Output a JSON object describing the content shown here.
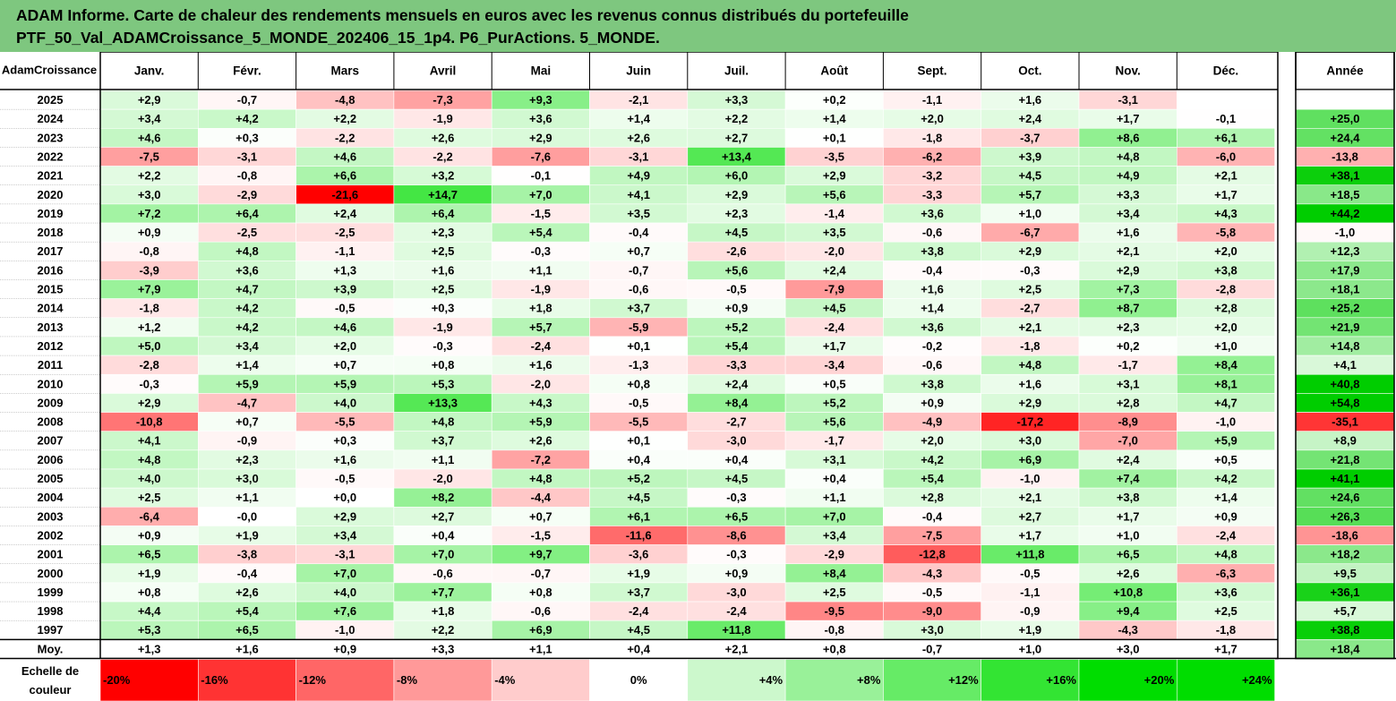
{
  "header": {
    "line1": "ADAM Informe. Carte de chaleur des rendements mensuels en euros avec les revenus connus distribués du portefeuille",
    "line2": "PTF_50_Val_ADAMCroissance_5_MONDE_202406_15_1p4. P6_PurActions. 5_MONDE."
  },
  "corner_watermark": "AdamCroissance",
  "chart_data": {
    "type": "heatmap",
    "title": "ADAM Informe. Carte de chaleur des rendements mensuels en euros avec les revenus connus distribués du portefeuille PTF_50_Val_ADAMCroissance_5_MONDE_202406_15_1p4. P6_PurActions. 5_MONDE.",
    "columns": [
      "Janv.",
      "Févr.",
      "Mars",
      "Avril",
      "Mai",
      "Juin",
      "Juil.",
      "Août",
      "Sept.",
      "Oct.",
      "Nov.",
      "Déc."
    ],
    "year_column": "Année",
    "rows": [
      {
        "year": "2025",
        "values": [
          "+2,9",
          "-0,7",
          "-4,8",
          "-7,3",
          "+9,3",
          "-2,1",
          "+3,3",
          "+0,2",
          "-1,1",
          "+1,6",
          "-3,1",
          ""
        ],
        "annual": ""
      },
      {
        "year": "2024",
        "values": [
          "+3,4",
          "+4,2",
          "+2,2",
          "-1,9",
          "+3,6",
          "+1,4",
          "+2,2",
          "+1,4",
          "+2,0",
          "+2,4",
          "+1,7",
          "-0,1"
        ],
        "annual": "+25,0"
      },
      {
        "year": "2023",
        "values": [
          "+4,6",
          "+0,3",
          "-2,2",
          "+2,6",
          "+2,9",
          "+2,6",
          "+2,7",
          "+0,1",
          "-1,8",
          "-3,7",
          "+8,6",
          "+6,1"
        ],
        "annual": "+24,4"
      },
      {
        "year": "2022",
        "values": [
          "-7,5",
          "-3,1",
          "+4,6",
          "-2,2",
          "-7,6",
          "-3,1",
          "+13,4",
          "-3,5",
          "-6,2",
          "+3,9",
          "+4,8",
          "-6,0"
        ],
        "annual": "-13,8"
      },
      {
        "year": "2021",
        "values": [
          "+2,2",
          "-0,8",
          "+6,6",
          "+3,2",
          "-0,1",
          "+4,9",
          "+6,0",
          "+2,9",
          "-3,2",
          "+4,5",
          "+4,9",
          "+2,1"
        ],
        "annual": "+38,1"
      },
      {
        "year": "2020",
        "values": [
          "+3,0",
          "-2,9",
          "-21,6",
          "+14,7",
          "+7,0",
          "+4,1",
          "+2,9",
          "+5,6",
          "-3,3",
          "+5,7",
          "+3,3",
          "+1,7"
        ],
        "annual": "+18,5"
      },
      {
        "year": "2019",
        "values": [
          "+7,2",
          "+6,4",
          "+2,4",
          "+6,4",
          "-1,5",
          "+3,5",
          "+2,3",
          "-1,4",
          "+3,6",
          "+1,0",
          "+3,4",
          "+4,3"
        ],
        "annual": "+44,2"
      },
      {
        "year": "2018",
        "values": [
          "+0,9",
          "-2,5",
          "-2,5",
          "+2,3",
          "+5,4",
          "-0,4",
          "+4,5",
          "+3,5",
          "-0,6",
          "-6,7",
          "+1,6",
          "-5,8"
        ],
        "annual": "-1,0"
      },
      {
        "year": "2017",
        "values": [
          "-0,8",
          "+4,8",
          "-1,1",
          "+2,5",
          "-0,3",
          "+0,7",
          "-2,6",
          "-2,0",
          "+3,8",
          "+2,9",
          "+2,1",
          "+2,0"
        ],
        "annual": "+12,3"
      },
      {
        "year": "2016",
        "values": [
          "-3,9",
          "+3,6",
          "+1,3",
          "+1,6",
          "+1,1",
          "-0,7",
          "+5,6",
          "+2,4",
          "-0,4",
          "-0,3",
          "+2,9",
          "+3,8"
        ],
        "annual": "+17,9"
      },
      {
        "year": "2015",
        "values": [
          "+7,9",
          "+4,7",
          "+3,9",
          "+2,5",
          "-1,9",
          "-0,6",
          "-0,5",
          "-7,9",
          "+1,6",
          "+2,5",
          "+7,3",
          "-2,8"
        ],
        "annual": "+18,1"
      },
      {
        "year": "2014",
        "values": [
          "-1,8",
          "+4,2",
          "-0,5",
          "+0,3",
          "+1,8",
          "+3,7",
          "+0,9",
          "+4,5",
          "+1,4",
          "-2,7",
          "+8,7",
          "+2,8"
        ],
        "annual": "+25,2"
      },
      {
        "year": "2013",
        "values": [
          "+1,2",
          "+4,2",
          "+4,6",
          "-1,9",
          "+5,7",
          "-5,9",
          "+5,2",
          "-2,4",
          "+3,6",
          "+2,1",
          "+2,3",
          "+2,0"
        ],
        "annual": "+21,9"
      },
      {
        "year": "2012",
        "values": [
          "+5,0",
          "+3,4",
          "+2,0",
          "-0,3",
          "-2,4",
          "+0,1",
          "+5,4",
          "+1,7",
          "-0,2",
          "-1,8",
          "+0,2",
          "+1,0"
        ],
        "annual": "+14,8"
      },
      {
        "year": "2011",
        "values": [
          "-2,8",
          "+1,4",
          "+0,7",
          "+0,8",
          "+1,6",
          "-1,3",
          "-3,3",
          "-3,4",
          "-0,6",
          "+4,8",
          "-1,7",
          "+8,4"
        ],
        "annual": "+4,1"
      },
      {
        "year": "2010",
        "values": [
          "-0,3",
          "+5,9",
          "+5,9",
          "+5,3",
          "-2,0",
          "+0,8",
          "+2,4",
          "+0,5",
          "+3,8",
          "+1,6",
          "+3,1",
          "+8,1"
        ],
        "annual": "+40,8"
      },
      {
        "year": "2009",
        "values": [
          "+2,9",
          "-4,7",
          "+4,0",
          "+13,3",
          "+4,3",
          "-0,5",
          "+8,4",
          "+5,2",
          "+0,9",
          "+2,9",
          "+2,8",
          "+4,7"
        ],
        "annual": "+54,8"
      },
      {
        "year": "2008",
        "values": [
          "-10,8",
          "+0,7",
          "-5,5",
          "+4,8",
          "+5,9",
          "-5,5",
          "-2,7",
          "+5,6",
          "-4,9",
          "-17,2",
          "-8,9",
          "-1,0"
        ],
        "annual": "-35,1"
      },
      {
        "year": "2007",
        "values": [
          "+4,1",
          "-0,9",
          "+0,3",
          "+3,7",
          "+2,6",
          "+0,1",
          "-3,0",
          "-1,7",
          "+2,0",
          "+3,0",
          "-7,0",
          "+5,9"
        ],
        "annual": "+8,9"
      },
      {
        "year": "2006",
        "values": [
          "+4,8",
          "+2,3",
          "+1,6",
          "+1,1",
          "-7,2",
          "+0,4",
          "+0,4",
          "+3,1",
          "+4,2",
          "+6,9",
          "+2,4",
          "+0,5"
        ],
        "annual": "+21,8"
      },
      {
        "year": "2005",
        "values": [
          "+4,0",
          "+3,0",
          "-0,5",
          "-2,0",
          "+4,8",
          "+5,2",
          "+4,5",
          "+0,4",
          "+5,4",
          "-1,0",
          "+7,4",
          "+4,2"
        ],
        "annual": "+41,1"
      },
      {
        "year": "2004",
        "values": [
          "+2,5",
          "+1,1",
          "+0,0",
          "+8,2",
          "-4,4",
          "+4,5",
          "-0,3",
          "+1,1",
          "+2,8",
          "+2,1",
          "+3,8",
          "+1,4"
        ],
        "annual": "+24,6"
      },
      {
        "year": "2003",
        "values": [
          "-6,4",
          "-0,0",
          "+2,9",
          "+2,7",
          "+0,7",
          "+6,1",
          "+6,5",
          "+7,0",
          "-0,4",
          "+2,7",
          "+1,7",
          "+0,9"
        ],
        "annual": "+26,3"
      },
      {
        "year": "2002",
        "values": [
          "+0,9",
          "+1,9",
          "+3,4",
          "+0,4",
          "-1,5",
          "-11,6",
          "-8,6",
          "+3,4",
          "-7,5",
          "+1,7",
          "+1,0",
          "-2,4"
        ],
        "annual": "-18,6"
      },
      {
        "year": "2001",
        "values": [
          "+6,5",
          "-3,8",
          "-3,1",
          "+7,0",
          "+9,7",
          "-3,6",
          "-0,3",
          "-2,9",
          "-12,8",
          "+11,8",
          "+6,5",
          "+4,8"
        ],
        "annual": "+18,2"
      },
      {
        "year": "2000",
        "values": [
          "+1,9",
          "-0,4",
          "+7,0",
          "-0,6",
          "-0,7",
          "+1,9",
          "+0,9",
          "+8,4",
          "-4,3",
          "-0,5",
          "+2,6",
          "-6,3"
        ],
        "annual": "+9,5"
      },
      {
        "year": "1999",
        "values": [
          "+0,8",
          "+2,6",
          "+4,0",
          "+7,7",
          "+0,8",
          "+3,7",
          "-3,0",
          "+2,5",
          "-0,5",
          "-1,1",
          "+10,8",
          "+3,6"
        ],
        "annual": "+36,1"
      },
      {
        "year": "1998",
        "values": [
          "+4,4",
          "+5,4",
          "+7,6",
          "+1,8",
          "-0,6",
          "-2,4",
          "-2,4",
          "-9,5",
          "-9,0",
          "-0,9",
          "+9,4",
          "+2,5"
        ],
        "annual": "+5,7"
      },
      {
        "year": "1997",
        "values": [
          "+5,3",
          "+6,5",
          "-1,0",
          "+2,2",
          "+6,9",
          "+4,5",
          "+11,8",
          "-0,8",
          "+3,0",
          "+1,9",
          "-4,3",
          "-1,8"
        ],
        "annual": "+38,8"
      }
    ],
    "average_row": {
      "label": "Moy.",
      "values": [
        "+1,3",
        "+1,6",
        "+0,9",
        "+3,3",
        "+1,1",
        "+0,4",
        "+2,1",
        "+0,8",
        "-0,7",
        "+1,0",
        "+3,0",
        "+1,7"
      ],
      "annual": "+18,4"
    },
    "scale": {
      "label_line1": "Echelle de",
      "label_line2": "couleur",
      "labels": [
        "-20%",
        "-16%",
        "-12%",
        "-8%",
        "-4%",
        "0%",
        "+4%",
        "+8%",
        "+12%",
        "+16%",
        "+20%",
        "+24%"
      ],
      "values": [
        -20,
        -16,
        -12,
        -8,
        -4,
        0,
        4,
        8,
        12,
        16,
        20,
        24
      ]
    },
    "color_range": {
      "min": -20,
      "max": 20
    }
  },
  "colors": {
    "header_bg": "#7ec77f",
    "negative_max": "#ff0000",
    "positive_max": "#00dd00",
    "neutral": "#ffffff"
  }
}
